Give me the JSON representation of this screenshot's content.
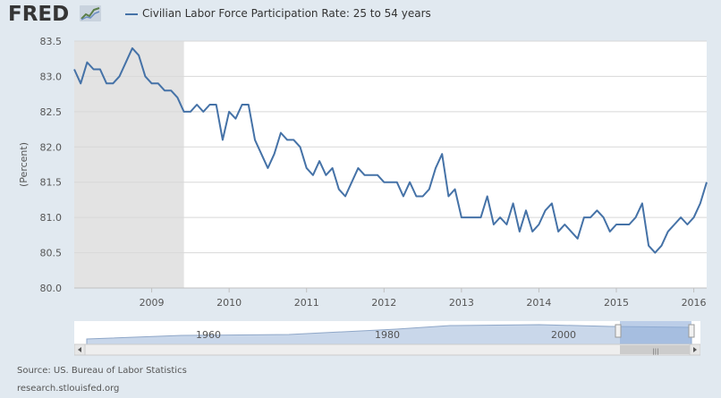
{
  "header": {
    "logo_text": "FRED",
    "logo_icon": "line-chart-icon"
  },
  "colors": {
    "series": "#4572a7",
    "recession": "#e3e3e3",
    "page_bg": "#e1e9f0",
    "navigator_fill": "#8faed8"
  },
  "chart_data": {
    "type": "line",
    "ylabel": "(Percent)",
    "ylim": [
      80.0,
      83.5
    ],
    "yticks": [
      "80.0",
      "80.5",
      "81.0",
      "81.5",
      "82.0",
      "82.5",
      "83.0",
      "83.5"
    ],
    "xticks": [
      "2009",
      "2010",
      "2011",
      "2012",
      "2013",
      "2014",
      "2015",
      "2016"
    ],
    "xlim": [
      "2008-01",
      "2016-03"
    ],
    "grid": true,
    "legend_position": "top-left",
    "recession_shading": [
      {
        "start": "2008-01",
        "end": "2009-06"
      }
    ],
    "series": [
      {
        "name": "Civilian Labor Force Participation Rate: 25 to 54 years",
        "x": [
          "2008-01",
          "2008-02",
          "2008-03",
          "2008-04",
          "2008-05",
          "2008-06",
          "2008-07",
          "2008-08",
          "2008-09",
          "2008-10",
          "2008-11",
          "2008-12",
          "2009-01",
          "2009-02",
          "2009-03",
          "2009-04",
          "2009-05",
          "2009-06",
          "2009-07",
          "2009-08",
          "2009-09",
          "2009-10",
          "2009-11",
          "2009-12",
          "2010-01",
          "2010-02",
          "2010-03",
          "2010-04",
          "2010-05",
          "2010-06",
          "2010-07",
          "2010-08",
          "2010-09",
          "2010-10",
          "2010-11",
          "2010-12",
          "2011-01",
          "2011-02",
          "2011-03",
          "2011-04",
          "2011-05",
          "2011-06",
          "2011-07",
          "2011-08",
          "2011-09",
          "2011-10",
          "2011-11",
          "2011-12",
          "2012-01",
          "2012-02",
          "2012-03",
          "2012-04",
          "2012-05",
          "2012-06",
          "2012-07",
          "2012-08",
          "2012-09",
          "2012-10",
          "2012-11",
          "2012-12",
          "2013-01",
          "2013-02",
          "2013-03",
          "2013-04",
          "2013-05",
          "2013-06",
          "2013-07",
          "2013-08",
          "2013-09",
          "2013-10",
          "2013-11",
          "2013-12",
          "2014-01",
          "2014-02",
          "2014-03",
          "2014-04",
          "2014-05",
          "2014-06",
          "2014-07",
          "2014-08",
          "2014-09",
          "2014-10",
          "2014-11",
          "2014-12",
          "2015-01",
          "2015-02",
          "2015-03",
          "2015-04",
          "2015-05",
          "2015-06",
          "2015-07",
          "2015-08",
          "2015-09",
          "2015-10",
          "2015-11",
          "2015-12",
          "2016-01",
          "2016-02",
          "2016-03"
        ],
        "values": [
          83.1,
          82.9,
          83.2,
          83.1,
          83.1,
          82.9,
          82.9,
          83.0,
          83.2,
          83.4,
          83.3,
          83.0,
          82.9,
          82.9,
          82.8,
          82.8,
          82.7,
          82.5,
          82.5,
          82.6,
          82.5,
          82.6,
          82.6,
          82.1,
          82.5,
          82.4,
          82.6,
          82.6,
          82.1,
          81.9,
          81.7,
          81.9,
          82.2,
          82.1,
          82.1,
          82.0,
          81.7,
          81.6,
          81.8,
          81.6,
          81.7,
          81.4,
          81.3,
          81.5,
          81.7,
          81.6,
          81.6,
          81.6,
          81.5,
          81.5,
          81.5,
          81.3,
          81.5,
          81.3,
          81.3,
          81.4,
          81.7,
          81.9,
          81.3,
          81.4,
          81.0,
          81.0,
          81.0,
          81.0,
          81.3,
          80.9,
          81.0,
          80.9,
          81.2,
          80.8,
          81.1,
          80.8,
          80.9,
          81.1,
          81.2,
          80.8,
          80.9,
          80.8,
          80.7,
          81.0,
          81.0,
          81.1,
          81.0,
          80.8,
          80.9,
          80.9,
          80.9,
          81.0,
          81.2,
          80.6,
          80.5,
          80.6,
          80.8,
          80.9,
          81.0,
          80.9,
          81.0,
          81.2,
          81.5
        ]
      }
    ]
  },
  "navigator": {
    "labels": [
      "1960",
      "1980",
      "2000"
    ],
    "scroll_left_arrow": "chevron-left-icon",
    "scroll_right_arrow": "chevron-right-icon"
  },
  "footer": {
    "source": "Source: US. Bureau of Labor Statistics",
    "site": "research.stlouisfed.org"
  }
}
